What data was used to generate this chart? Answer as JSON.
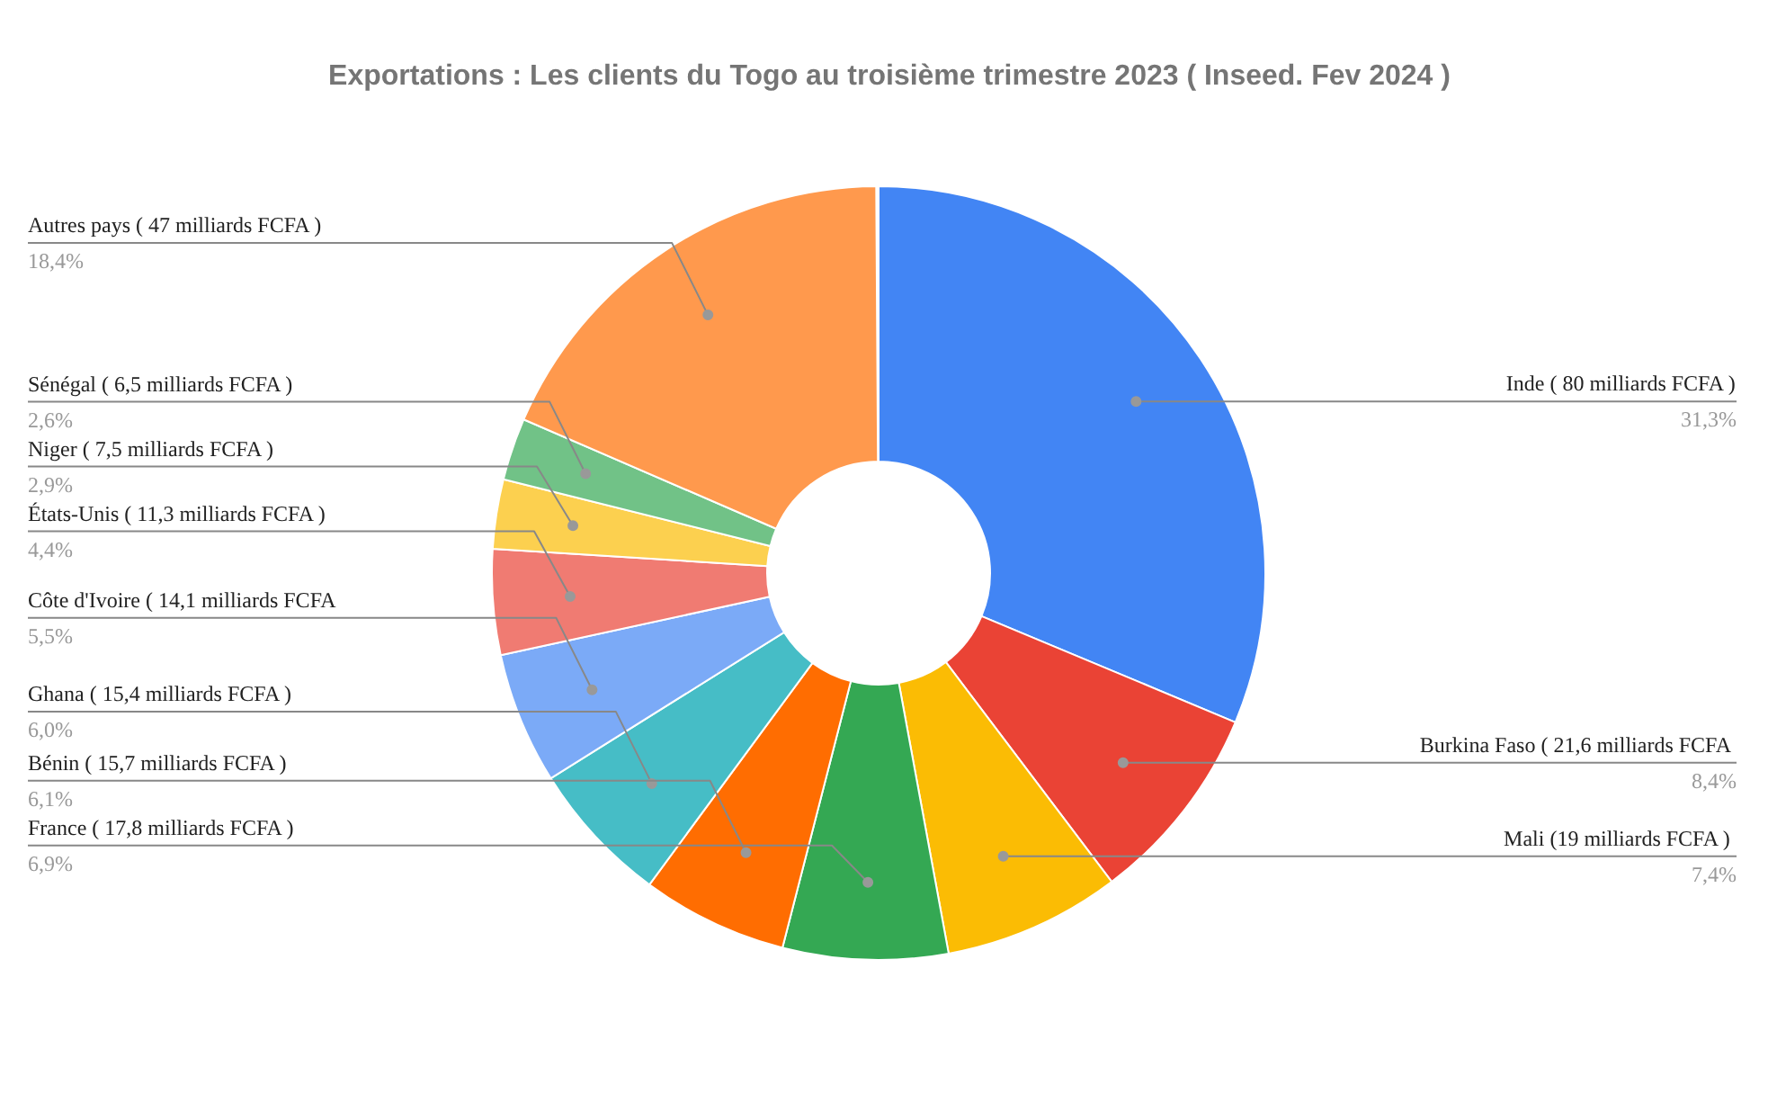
{
  "chart_data": {
    "type": "donut",
    "title": "Exportations : Les clients du Togo au troisième trimestre 2023 ( Inseed. Fev 2024 )",
    "categories": [
      "Inde ( 80 milliards FCFA )",
      "Burkina Faso  ( 21,6 milliards FCFA",
      "Mali (19  milliards FCFA )",
      "France ( 17,8  milliards FCFA )",
      "Bénin  ( 15,7  milliards FCFA )",
      "Ghana ( 15,4  milliards FCFA )",
      "Côte d'Ivoire ( 14,1  milliards FCFA",
      "États-Unis ( 11,3  milliards FCFA )",
      "Niger ( 7,5  milliards FCFA )",
      "Sénégal ( 6,5  milliards FCFA )",
      "Autres pays ( 47 milliards FCFA )"
    ],
    "values": [
      31.3,
      8.4,
      7.4,
      6.9,
      6.1,
      6.0,
      5.5,
      4.4,
      2.9,
      2.6,
      18.4
    ],
    "value_labels": [
      "31,3%",
      "8,4%",
      "7,4%",
      "6,9%",
      "6,1%",
      "6,0%",
      "5,5%",
      "4,4%",
      "2,9%",
      "2,6%",
      "18,4%"
    ],
    "colors": [
      "#4285f4",
      "#ea4335",
      "#fbbc04",
      "#34a853",
      "#ff6d01",
      "#46bdc6",
      "#7baaf7",
      "#f07b72",
      "#fcd04f",
      "#71c287",
      "#ff994d"
    ]
  }
}
